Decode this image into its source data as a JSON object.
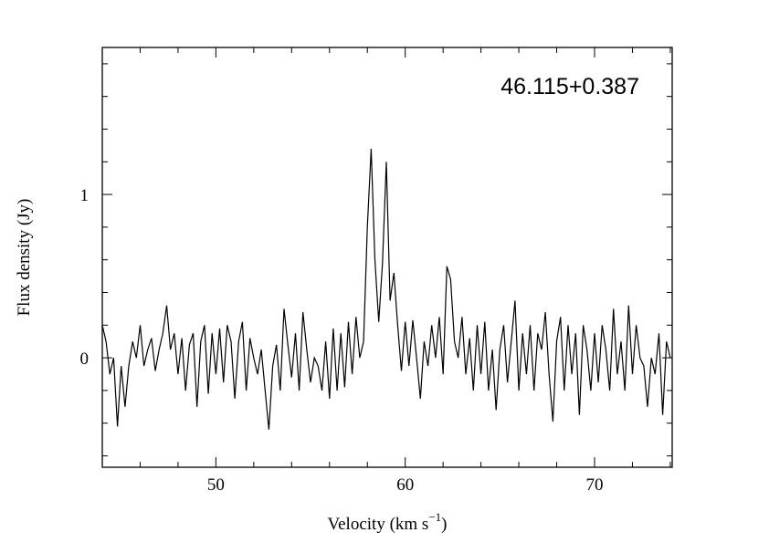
{
  "chart_data": {
    "type": "line",
    "title": "46.115+0.387",
    "xlabel": "Velocity (km s",
    "xlabel_sup": "−1",
    "xlabel_end": ")",
    "ylabel": "Flux density (Jy)",
    "xlim": [
      44,
      74.1
    ],
    "ylim": [
      -0.67,
      1.9
    ],
    "x_ticks": [
      50,
      60,
      70
    ],
    "y_ticks": [
      0,
      1
    ],
    "x_minor_step": 2,
    "y_minor_step": 0.2,
    "grid": false,
    "line_color": "#000000",
    "points": [
      [
        44.0,
        0.2
      ],
      [
        44.2,
        0.1
      ],
      [
        44.4,
        -0.1
      ],
      [
        44.6,
        0.0
      ],
      [
        44.8,
        -0.42
      ],
      [
        45.0,
        -0.05
      ],
      [
        45.2,
        -0.3
      ],
      [
        45.4,
        -0.05
      ],
      [
        45.6,
        0.1
      ],
      [
        45.8,
        0.0
      ],
      [
        46.0,
        0.2
      ],
      [
        46.2,
        -0.05
      ],
      [
        46.4,
        0.05
      ],
      [
        46.6,
        0.12
      ],
      [
        46.8,
        -0.08
      ],
      [
        47.0,
        0.05
      ],
      [
        47.2,
        0.15
      ],
      [
        47.4,
        0.32
      ],
      [
        47.6,
        0.05
      ],
      [
        47.8,
        0.15
      ],
      [
        48.0,
        -0.1
      ],
      [
        48.2,
        0.12
      ],
      [
        48.4,
        -0.2
      ],
      [
        48.6,
        0.08
      ],
      [
        48.8,
        0.15
      ],
      [
        49.0,
        -0.3
      ],
      [
        49.2,
        0.1
      ],
      [
        49.4,
        0.2
      ],
      [
        49.6,
        -0.22
      ],
      [
        49.8,
        0.15
      ],
      [
        50.0,
        -0.1
      ],
      [
        50.2,
        0.18
      ],
      [
        50.4,
        -0.15
      ],
      [
        50.6,
        0.2
      ],
      [
        50.8,
        0.1
      ],
      [
        51.0,
        -0.25
      ],
      [
        51.2,
        0.1
      ],
      [
        51.4,
        0.22
      ],
      [
        51.6,
        -0.2
      ],
      [
        51.8,
        0.12
      ],
      [
        52.0,
        0.0
      ],
      [
        52.2,
        -0.1
      ],
      [
        52.4,
        0.05
      ],
      [
        52.6,
        -0.2
      ],
      [
        52.8,
        -0.44
      ],
      [
        53.0,
        -0.05
      ],
      [
        53.2,
        0.08
      ],
      [
        53.4,
        -0.2
      ],
      [
        53.6,
        0.3
      ],
      [
        53.8,
        0.08
      ],
      [
        54.0,
        -0.12
      ],
      [
        54.2,
        0.15
      ],
      [
        54.4,
        -0.2
      ],
      [
        54.6,
        0.28
      ],
      [
        54.8,
        0.05
      ],
      [
        55.0,
        -0.15
      ],
      [
        55.2,
        0.0
      ],
      [
        55.4,
        -0.05
      ],
      [
        55.6,
        -0.2
      ],
      [
        55.8,
        0.1
      ],
      [
        56.0,
        -0.25
      ],
      [
        56.2,
        0.18
      ],
      [
        56.4,
        -0.2
      ],
      [
        56.6,
        0.15
      ],
      [
        56.8,
        -0.18
      ],
      [
        57.0,
        0.22
      ],
      [
        57.2,
        -0.1
      ],
      [
        57.4,
        0.25
      ],
      [
        57.6,
        0.0
      ],
      [
        57.8,
        0.1
      ],
      [
        58.0,
        0.8
      ],
      [
        58.2,
        1.28
      ],
      [
        58.4,
        0.6
      ],
      [
        58.6,
        0.22
      ],
      [
        58.8,
        0.58
      ],
      [
        59.0,
        1.2
      ],
      [
        59.2,
        0.35
      ],
      [
        59.4,
        0.52
      ],
      [
        59.6,
        0.2
      ],
      [
        59.8,
        -0.08
      ],
      [
        60.0,
        0.22
      ],
      [
        60.2,
        -0.05
      ],
      [
        60.4,
        0.23
      ],
      [
        60.6,
        0.0
      ],
      [
        60.8,
        -0.25
      ],
      [
        61.0,
        0.1
      ],
      [
        61.2,
        -0.05
      ],
      [
        61.4,
        0.2
      ],
      [
        61.6,
        0.0
      ],
      [
        61.8,
        0.25
      ],
      [
        62.0,
        -0.1
      ],
      [
        62.2,
        0.56
      ],
      [
        62.4,
        0.48
      ],
      [
        62.6,
        0.1
      ],
      [
        62.8,
        0.0
      ],
      [
        63.0,
        0.25
      ],
      [
        63.2,
        -0.1
      ],
      [
        63.4,
        0.12
      ],
      [
        63.6,
        -0.2
      ],
      [
        63.8,
        0.2
      ],
      [
        64.0,
        -0.1
      ],
      [
        64.2,
        0.22
      ],
      [
        64.4,
        -0.2
      ],
      [
        64.6,
        0.05
      ],
      [
        64.8,
        -0.32
      ],
      [
        65.0,
        0.05
      ],
      [
        65.2,
        0.2
      ],
      [
        65.4,
        -0.15
      ],
      [
        65.6,
        0.1
      ],
      [
        65.8,
        0.35
      ],
      [
        66.0,
        -0.2
      ],
      [
        66.2,
        0.15
      ],
      [
        66.4,
        -0.1
      ],
      [
        66.6,
        0.2
      ],
      [
        66.8,
        -0.2
      ],
      [
        67.0,
        0.15
      ],
      [
        67.2,
        0.05
      ],
      [
        67.4,
        0.28
      ],
      [
        67.6,
        -0.1
      ],
      [
        67.8,
        -0.39
      ],
      [
        68.0,
        0.1
      ],
      [
        68.2,
        0.25
      ],
      [
        68.4,
        -0.2
      ],
      [
        68.6,
        0.2
      ],
      [
        68.8,
        -0.1
      ],
      [
        69.0,
        0.15
      ],
      [
        69.2,
        -0.35
      ],
      [
        69.4,
        0.2
      ],
      [
        69.6,
        0.05
      ],
      [
        69.8,
        -0.2
      ],
      [
        70.0,
        0.15
      ],
      [
        70.2,
        -0.15
      ],
      [
        70.4,
        0.2
      ],
      [
        70.6,
        0.05
      ],
      [
        70.8,
        -0.2
      ],
      [
        71.0,
        0.3
      ],
      [
        71.2,
        -0.1
      ],
      [
        71.4,
        0.1
      ],
      [
        71.6,
        -0.2
      ],
      [
        71.8,
        0.32
      ],
      [
        72.0,
        -0.1
      ],
      [
        72.2,
        0.2
      ],
      [
        72.4,
        0.0
      ],
      [
        72.6,
        -0.05
      ],
      [
        72.8,
        -0.3
      ],
      [
        73.0,
        0.0
      ],
      [
        73.2,
        -0.1
      ],
      [
        73.4,
        0.15
      ],
      [
        73.6,
        -0.35
      ],
      [
        73.8,
        0.1
      ],
      [
        74.0,
        0.0
      ]
    ]
  }
}
